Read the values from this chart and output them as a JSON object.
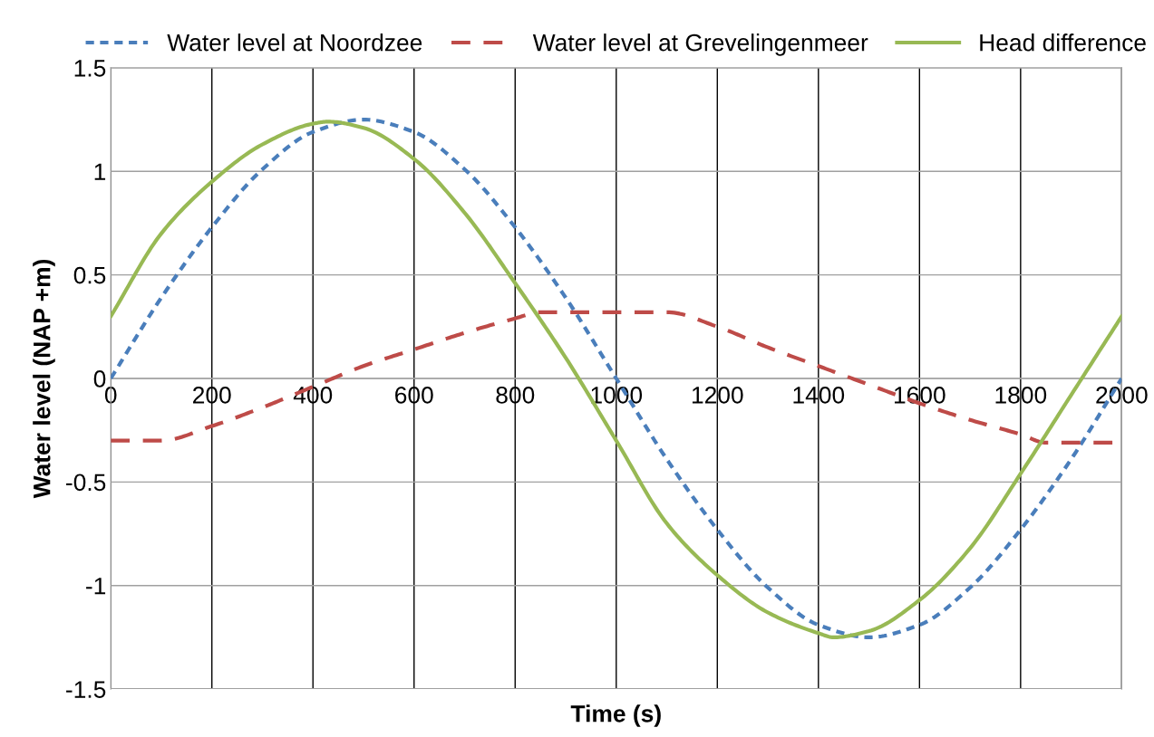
{
  "chart_data": {
    "type": "line",
    "xlabel": "Time (s)",
    "ylabel": "Water level (NAP +m)",
    "xlim": [
      0,
      2000
    ],
    "xticks": [
      0,
      200,
      400,
      600,
      800,
      1000,
      1200,
      1400,
      1600,
      1800,
      2000
    ],
    "ylim": [
      -1.5,
      1.5
    ],
    "yticks": [
      {
        "value": -1.5,
        "label": "-1.5"
      },
      {
        "value": -1,
        "label": "-1"
      },
      {
        "value": -0.5,
        "label": "-0.5"
      },
      0,
      0.5,
      1,
      1.5
    ],
    "grid": true,
    "legend": "top",
    "marker": "none",
    "series": [
      {
        "name": "Water level at Noordzee",
        "color": "#4a7ebb",
        "line_style": "dotted",
        "x": [
          0,
          100,
          200,
          300,
          400,
          500,
          600,
          700,
          800,
          900,
          1000,
          1100,
          1200,
          1300,
          1400,
          1500,
          1600,
          1700,
          1800,
          1900,
          2000
        ],
        "values": [
          0,
          0.39,
          0.73,
          1.01,
          1.19,
          1.25,
          1.19,
          1.01,
          0.73,
          0.39,
          0,
          -0.39,
          -0.73,
          -1.01,
          -1.19,
          -1.25,
          -1.19,
          -1.01,
          -0.73,
          -0.39,
          0
        ]
      },
      {
        "name": "Water level at Grevelingenmeer",
        "color": "#be4b48",
        "line_style": "dashed",
        "x": [
          0,
          100,
          200,
          300,
          400,
          500,
          600,
          700,
          800,
          850,
          900,
          1000,
          1100,
          1200,
          1300,
          1400,
          1500,
          1600,
          1700,
          1800,
          1850,
          1900,
          2000
        ],
        "values": [
          -0.3,
          -0.3,
          -0.23,
          -0.14,
          -0.04,
          0.06,
          0.14,
          0.22,
          0.29,
          0.32,
          0.32,
          0.32,
          0.32,
          0.25,
          0.15,
          0.06,
          -0.03,
          -0.12,
          -0.2,
          -0.27,
          -0.31,
          -0.31,
          -0.31
        ]
      },
      {
        "name": "Head difference",
        "color": "#98b954",
        "line_style": "solid",
        "x": [
          0,
          100,
          200,
          300,
          400,
          430,
          500,
          600,
          700,
          800,
          900,
          1000,
          1100,
          1200,
          1300,
          1400,
          1430,
          1500,
          1600,
          1700,
          1800,
          1900,
          2000
        ],
        "values": [
          0.3,
          0.7,
          0.95,
          1.13,
          1.23,
          1.24,
          1.21,
          1.06,
          0.8,
          0.46,
          0.1,
          -0.3,
          -0.7,
          -0.95,
          -1.13,
          -1.23,
          -1.25,
          -1.22,
          -1.07,
          -0.82,
          -0.46,
          -0.08,
          0.3
        ]
      }
    ]
  }
}
